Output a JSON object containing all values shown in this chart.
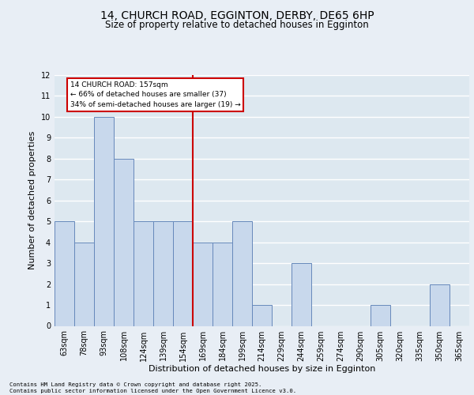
{
  "title": "14, CHURCH ROAD, EGGINTON, DERBY, DE65 6HP",
  "subtitle": "Size of property relative to detached houses in Egginton",
  "xlabel": "Distribution of detached houses by size in Egginton",
  "ylabel": "Number of detached properties",
  "footer_line1": "Contains HM Land Registry data © Crown copyright and database right 2025.",
  "footer_line2": "Contains public sector information licensed under the Open Government Licence v3.0.",
  "categories": [
    "63sqm",
    "78sqm",
    "93sqm",
    "108sqm",
    "124sqm",
    "139sqm",
    "154sqm",
    "169sqm",
    "184sqm",
    "199sqm",
    "214sqm",
    "229sqm",
    "244sqm",
    "259sqm",
    "274sqm",
    "290sqm",
    "305sqm",
    "320sqm",
    "335sqm",
    "350sqm",
    "365sqm"
  ],
  "values": [
    5,
    4,
    10,
    8,
    5,
    5,
    5,
    4,
    4,
    5,
    1,
    0,
    3,
    0,
    0,
    0,
    1,
    0,
    0,
    2,
    0
  ],
  "bar_color": "#c8d8ec",
  "bar_edge_color": "#6688bb",
  "property_label": "14 CHURCH ROAD: 157sqm",
  "annotation_line1": "← 66% of detached houses are smaller (37)",
  "annotation_line2": "34% of semi-detached houses are larger (19) →",
  "vline_color": "#cc0000",
  "vline_x_index": 6.5,
  "annotation_box_color": "#cc0000",
  "ylim": [
    0,
    12
  ],
  "yticks": [
    0,
    1,
    2,
    3,
    4,
    5,
    6,
    7,
    8,
    9,
    10,
    11,
    12
  ],
  "bg_color": "#dde8f0",
  "grid_color": "#ffffff",
  "fig_bg_color": "#e8eef5",
  "title_fontsize": 10,
  "subtitle_fontsize": 8.5,
  "axis_label_fontsize": 8,
  "tick_fontsize": 7
}
